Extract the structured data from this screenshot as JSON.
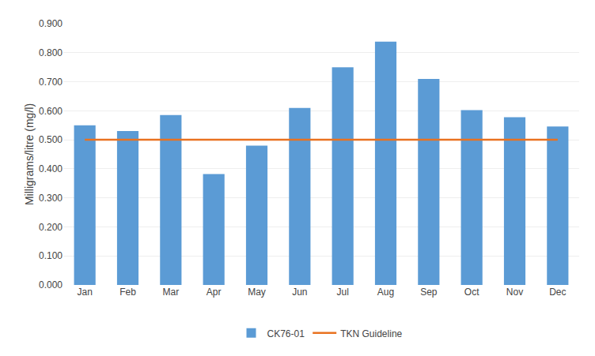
{
  "chart_data": {
    "type": "bar",
    "ylabel": "Milligrams/litre (mg/l)",
    "categories": [
      "Jan",
      "Feb",
      "Mar",
      "Apr",
      "May",
      "Jun",
      "Jul",
      "Aug",
      "Sep",
      "Oct",
      "Nov",
      "Dec"
    ],
    "series": [
      {
        "name": "CK76-01",
        "type": "bar",
        "color": "#5B9BD5",
        "values": [
          0.55,
          0.53,
          0.585,
          0.382,
          0.48,
          0.61,
          0.75,
          0.838,
          0.71,
          0.602,
          0.578,
          0.546
        ]
      },
      {
        "name": "TKN Guideline",
        "type": "line",
        "color": "#E97220",
        "values": [
          0.5,
          0.5,
          0.5,
          0.5,
          0.5,
          0.5,
          0.5,
          0.5,
          0.5,
          0.5,
          0.5,
          0.5
        ]
      }
    ],
    "ylim": [
      0.0,
      0.9
    ],
    "yticks": [
      {
        "value": 0.0,
        "label": "0.000"
      },
      {
        "value": 0.1,
        "label": "0.100"
      },
      {
        "value": 0.2,
        "label": "0.200"
      },
      {
        "value": 0.3,
        "label": "0.300"
      },
      {
        "value": 0.4,
        "label": "0.400"
      },
      {
        "value": 0.5,
        "label": "0.500"
      },
      {
        "value": 0.6,
        "label": "0.600"
      },
      {
        "value": 0.7,
        "label": "0.700"
      },
      {
        "value": 0.8,
        "label": "0.800"
      },
      {
        "value": 0.9,
        "label": "0.900"
      }
    ],
    "grid": true,
    "legend": "bottom"
  }
}
